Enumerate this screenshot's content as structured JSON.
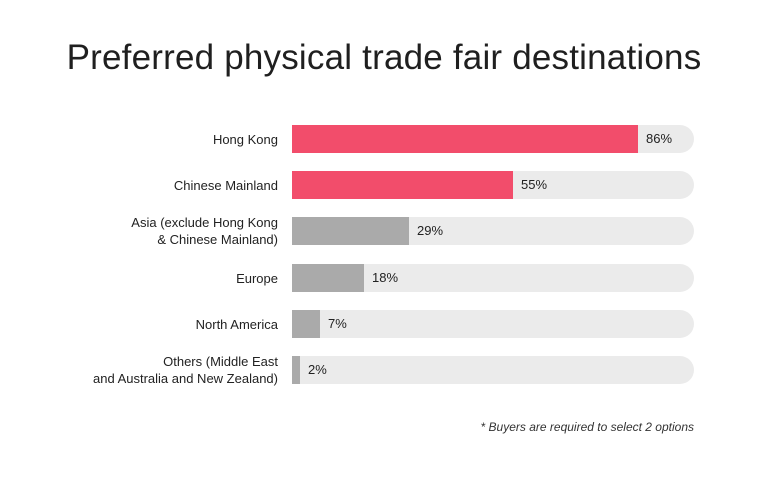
{
  "colors": {
    "highlight": "#f24d6b",
    "other": "#aaaaaa",
    "track": "#ebebeb"
  },
  "chart_data": {
    "type": "bar",
    "orientation": "horizontal",
    "title": "Preferred physical trade fair destinations",
    "xlim": [
      0,
      100
    ],
    "grid": false,
    "categories": [
      [
        "Hong Kong"
      ],
      [
        "Chinese Mainland"
      ],
      [
        "Asia (exclude Hong Kong",
        "& Chinese Mainland)"
      ],
      [
        "Europe"
      ],
      [
        "North America"
      ],
      [
        "Others (Middle East",
        "and Australia and New Zealand)"
      ]
    ],
    "values": [
      86,
      55,
      29,
      18,
      7,
      2
    ],
    "value_labels": [
      "86%",
      "55%",
      "29%",
      "18%",
      "7%",
      "2%"
    ],
    "highlighted": [
      true,
      true,
      false,
      false,
      false,
      false
    ],
    "footnote": "* Buyers are required to select 2 options"
  }
}
